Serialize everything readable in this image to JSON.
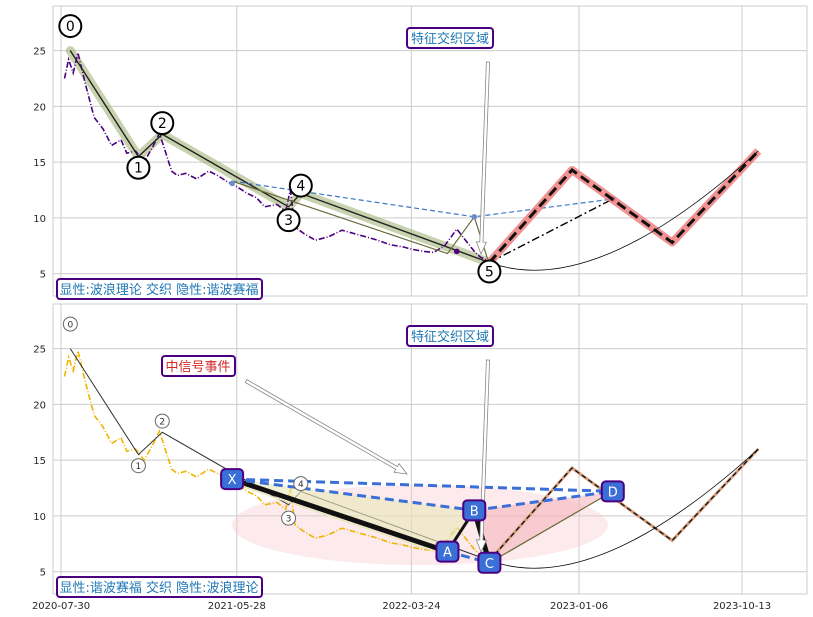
{
  "chart_data": [
    {
      "type": "line",
      "panel": "top",
      "title": "",
      "xlabel": "",
      "ylabel": "",
      "ylim": [
        3,
        29
      ],
      "yticks": [
        5,
        10,
        15,
        20,
        25
      ],
      "grid": true,
      "series": [
        {
          "style": "dash-dot",
          "color": "#4b0082",
          "x": [
            "2020-08-05",
            "2020-08-12",
            "2020-08-20",
            "2020-08-28",
            "2020-09-10",
            "2020-09-25",
            "2020-10-10",
            "2020-10-25",
            "2020-11-10",
            "2020-11-20",
            "2020-12-05",
            "2020-12-20",
            "2021-01-05",
            "2021-01-15",
            "2021-01-25",
            "2021-02-05",
            "2021-02-15",
            "2021-03-01",
            "2021-03-20",
            "2021-04-10",
            "2021-04-25",
            "2021-05-10",
            "2021-05-28",
            "2021-06-15",
            "2021-07-01",
            "2021-07-15",
            "2021-08-05",
            "2021-08-20",
            "2021-08-28",
            "2021-09-05",
            "2021-09-20",
            "2021-10-10",
            "2021-11-01",
            "2021-11-25",
            "2021-12-15",
            "2022-01-05",
            "2022-01-25",
            "2022-02-15",
            "2022-03-10",
            "2022-03-24",
            "2022-04-15",
            "2022-05-01",
            "2022-05-20",
            "2022-06-10",
            "2022-06-25",
            "2022-07-10",
            "2022-07-20",
            "2022-08-01",
            "2022-08-05"
          ],
          "y": [
            22.5,
            24.2,
            23.0,
            24.8,
            22.0,
            19.0,
            18.0,
            16.5,
            17.0,
            15.8,
            16.0,
            15.0,
            16.5,
            17.6,
            16.0,
            14.2,
            13.8,
            14.0,
            13.5,
            14.2,
            13.8,
            13.3,
            12.8,
            12.2,
            11.8,
            11.0,
            11.2,
            10.6,
            12.5,
            9.2,
            8.6,
            8.0,
            8.3,
            8.9,
            8.6,
            8.3,
            8.0,
            7.6,
            7.4,
            7.2,
            7.0,
            6.9,
            7.5,
            9.0,
            8.0,
            7.0,
            6.5,
            6.2,
            6.0
          ]
        },
        {
          "style": "solid-thick",
          "color": "#f08080",
          "x": [
            "2022-08-05",
            "2022-12-25",
            "2023-06-15",
            "2023-11-10"
          ],
          "y": [
            6.0,
            14.3,
            7.8,
            16.0
          ]
        }
      ],
      "wave_labels": [
        {
          "text": "0",
          "x": "2020-08-15",
          "y": 27.2
        },
        {
          "text": "1",
          "x": "2020-12-10",
          "y": 14.5
        },
        {
          "text": "2",
          "x": "2021-01-20",
          "y": 18.5
        },
        {
          "text": "3",
          "x": "2021-08-25",
          "y": 9.8
        },
        {
          "text": "4",
          "x": "2021-09-15",
          "y": 12.9
        },
        {
          "text": "5",
          "x": "2022-08-05",
          "y": 5.2
        }
      ],
      "annotations": [
        {
          "text": "特征交织区域",
          "color": "#1f77b4"
        },
        {
          "text": "显性:波浪理论 交织 隐性:谐波赛福",
          "color": "#1f77b4"
        }
      ]
    },
    {
      "type": "line",
      "panel": "bottom",
      "title": "",
      "xlabel": "",
      "ylabel": "",
      "ylim": [
        3,
        29
      ],
      "yticks": [
        5,
        10,
        15,
        20,
        25
      ],
      "xticks": [
        "2020-07-30",
        "2021-05-28",
        "2022-03-24",
        "2023-01-06",
        "2023-10-13"
      ],
      "grid": true,
      "series": [
        {
          "style": "dash-dot",
          "color": "#f0b400",
          "x": [
            "2020-08-05",
            "2020-08-12",
            "2020-08-20",
            "2020-08-28",
            "2020-09-10",
            "2020-09-25",
            "2020-10-10",
            "2020-10-25",
            "2020-11-10",
            "2020-11-20",
            "2020-12-05",
            "2020-12-20",
            "2021-01-05",
            "2021-01-15",
            "2021-01-25",
            "2021-02-05",
            "2021-02-15",
            "2021-03-01",
            "2021-03-20",
            "2021-04-10",
            "2021-04-25",
            "2021-05-10",
            "2021-05-28",
            "2021-06-15",
            "2021-07-01",
            "2021-07-15",
            "2021-08-05",
            "2021-08-20",
            "2021-08-28",
            "2021-09-05",
            "2021-09-20",
            "2021-10-10",
            "2021-11-01",
            "2021-11-25",
            "2021-12-15",
            "2022-01-05",
            "2022-01-25",
            "2022-02-15",
            "2022-03-10",
            "2022-03-24",
            "2022-04-15",
            "2022-05-01",
            "2022-05-20",
            "2022-06-10",
            "2022-06-25",
            "2022-07-10",
            "2022-07-20",
            "2022-08-01",
            "2022-08-05"
          ],
          "y": [
            22.5,
            24.2,
            23.0,
            24.8,
            22.0,
            19.0,
            18.0,
            16.5,
            17.0,
            15.8,
            16.0,
            15.0,
            16.5,
            17.6,
            16.0,
            14.2,
            13.8,
            14.0,
            13.5,
            14.2,
            13.8,
            13.3,
            12.8,
            12.2,
            11.8,
            11.0,
            11.2,
            10.6,
            12.5,
            9.2,
            8.6,
            8.0,
            8.3,
            8.9,
            8.6,
            8.3,
            8.0,
            7.6,
            7.4,
            7.2,
            7.0,
            6.9,
            7.5,
            9.0,
            8.0,
            7.0,
            6.5,
            6.2,
            6.0
          ]
        }
      ],
      "harmonic_points": [
        {
          "label": "X",
          "x": "2021-05-20",
          "y": 13.3
        },
        {
          "label": "A",
          "x": "2022-05-25",
          "y": 6.8
        },
        {
          "label": "B",
          "x": "2022-07-10",
          "y": 10.5
        },
        {
          "label": "C",
          "x": "2022-08-05",
          "y": 5.8
        },
        {
          "label": "D",
          "x": "2023-03-05",
          "y": 12.2
        }
      ],
      "wave_labels": [
        {
          "text": "0",
          "x": "2020-08-15",
          "y": 27.2
        },
        {
          "text": "1",
          "x": "2020-12-10",
          "y": 14.5
        },
        {
          "text": "2",
          "x": "2021-01-20",
          "y": 18.5
        },
        {
          "text": "3",
          "x": "2021-08-25",
          "y": 9.8
        },
        {
          "text": "4",
          "x": "2021-09-15",
          "y": 12.9
        }
      ],
      "annotations": [
        {
          "text": "特征交织区域",
          "color": "#1f77b4"
        },
        {
          "text": "中信号事件",
          "color": "#d62728"
        },
        {
          "text": "显性:谐波赛福 交织 隐性:波浪理论",
          "color": "#1f77b4"
        }
      ]
    }
  ],
  "labels": {
    "top_region": "特征交织区域",
    "top_legend": "显性:波浪理论 交织 隐性:谐波赛福",
    "bottom_region": "特征交织区域",
    "bottom_event": "中信号事件",
    "bottom_legend": "显性:谐波赛福 交织 隐性:波浪理论"
  },
  "colors": {
    "grid": "#cccccc",
    "price_top": "#4b0082",
    "price_bottom": "#f0b400",
    "wave_fill": "#9aad6c",
    "projection": "#f08080",
    "projection_alt": "#c87a5a",
    "harmonic_box": "#3a6fd8",
    "harmonic_edge": "#4b0082",
    "label_frame": "#4b0082",
    "region_text": "#1f77b4",
    "event_text": "#d62728"
  }
}
